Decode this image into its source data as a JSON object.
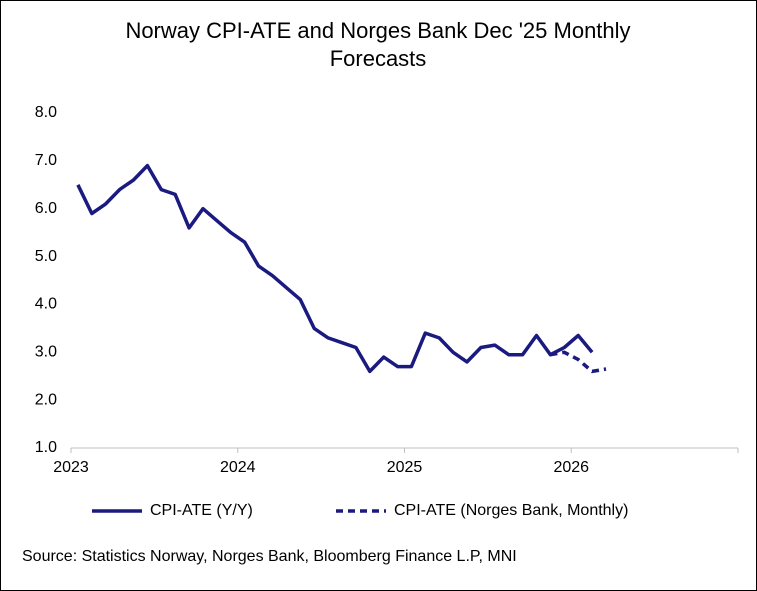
{
  "chart_data": {
    "type": "line",
    "title": [
      "Norway CPI-ATE and Norges Bank Dec '25 Monthly",
      "Forecasts"
    ],
    "source": "Source: Statistics Norway, Norges Bank, Bloomberg Finance L.P, MNI",
    "x": [
      "2023-01",
      "2023-02",
      "2023-03",
      "2023-04",
      "2023-05",
      "2023-06",
      "2023-07",
      "2023-08",
      "2023-09",
      "2023-10",
      "2023-11",
      "2023-12",
      "2024-01",
      "2024-02",
      "2024-03",
      "2024-04",
      "2024-05",
      "2024-06",
      "2024-07",
      "2024-08",
      "2024-09",
      "2024-10",
      "2024-11",
      "2024-12",
      "2025-01",
      "2025-02",
      "2025-03",
      "2025-04",
      "2025-05",
      "2025-06",
      "2025-07",
      "2025-08",
      "2025-09",
      "2025-10",
      "2025-11",
      "2025-12",
      "2026-01",
      "2026-02",
      "2026-03"
    ],
    "series": [
      {
        "name": "CPI-ATE (Y/Y)",
        "color": "#1a1a80",
        "dash": false,
        "values": [
          6.5,
          5.9,
          6.1,
          6.4,
          6.6,
          6.9,
          6.4,
          6.3,
          5.6,
          6.0,
          5.75,
          5.5,
          5.3,
          4.8,
          4.6,
          4.35,
          4.1,
          3.5,
          3.3,
          3.2,
          3.1,
          2.6,
          2.9,
          2.7,
          2.7,
          3.4,
          3.3,
          3.0,
          2.8,
          3.1,
          3.15,
          2.95,
          2.95,
          3.35,
          2.95,
          3.1,
          3.35,
          3.0,
          null
        ]
      },
      {
        "name": "CPI-ATE (Norges Bank, Monthly)",
        "color": "#1a1a80",
        "dash": true,
        "values": [
          null,
          null,
          null,
          null,
          null,
          null,
          null,
          null,
          null,
          null,
          null,
          null,
          null,
          null,
          null,
          null,
          null,
          null,
          null,
          null,
          null,
          null,
          null,
          null,
          null,
          null,
          null,
          null,
          null,
          null,
          null,
          null,
          null,
          null,
          2.95,
          3.0,
          2.85,
          2.6,
          2.65
        ]
      }
    ],
    "xlim": [
      2023,
      2027
    ],
    "xticks": [
      2023,
      2024,
      2025,
      2026
    ],
    "ylim": [
      1,
      8
    ],
    "yticks": [
      {
        "value": 1,
        "label": "1.0"
      },
      {
        "value": 2,
        "label": "2.0"
      },
      {
        "value": 3,
        "label": "3.0"
      },
      {
        "value": 4,
        "label": "4.0"
      },
      {
        "value": 5,
        "label": "5.0"
      },
      {
        "value": 6,
        "label": "6.0"
      },
      {
        "value": 7,
        "label": "7.0"
      },
      {
        "value": 8,
        "label": "8.0"
      }
    ],
    "grid": false,
    "legend": "bottom"
  }
}
